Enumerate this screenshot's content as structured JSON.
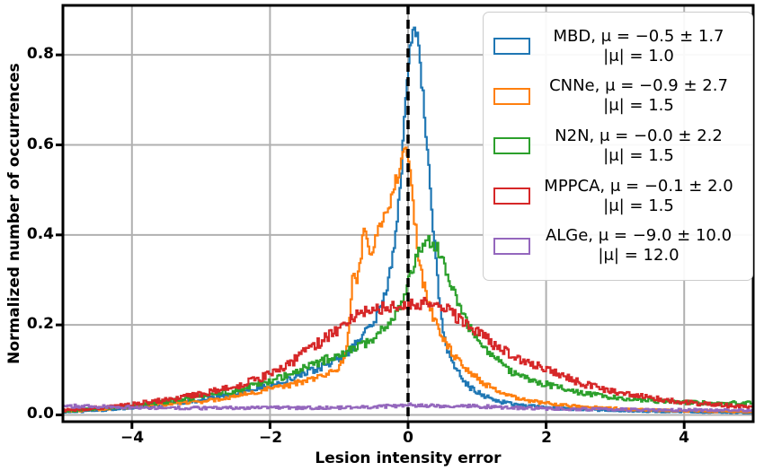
{
  "figure": {
    "xlabel": "Lesion intensity error",
    "ylabel": "Normalized number of occurrences",
    "x_tick_labels": [
      "−4",
      "−2",
      "0",
      "2",
      "4"
    ],
    "y_tick_labels": [
      "0.0",
      "0.2",
      "0.4",
      "0.6",
      "0.8"
    ]
  },
  "colors": {
    "background": "#ffffff",
    "grid": "#b0b0b0",
    "spine": "#000000",
    "zero_line": "#000000",
    "legend_border": "#cccccc"
  },
  "chart_data": {
    "type": "line",
    "title": "",
    "xlabel": "Lesion intensity error",
    "ylabel": "Normalized number of occurrences",
    "xlim": [
      -5,
      5
    ],
    "ylim": [
      -0.015,
      0.91
    ],
    "x_ticks": [
      -4,
      -2,
      0,
      2,
      4
    ],
    "y_ticks": [
      0,
      0.2,
      0.4,
      0.6,
      0.8
    ],
    "grid": true,
    "legend_position": "upper right",
    "vline": {
      "x": 0,
      "style": "dashed",
      "color": "#000000"
    },
    "series": [
      {
        "name": "MBD",
        "color": "#1f77b4",
        "legend_line1": "MBD, μ = −0.5 ± 1.7",
        "legend_line2": "|μ| = 1.0",
        "mu": -0.5,
        "sigma": 1.7,
        "abs_mu": 1.0,
        "peak": {
          "x": 0.1,
          "y": 0.86
        },
        "noise": 0.024,
        "x": [
          -5,
          -4.5,
          -4,
          -3.5,
          -3,
          -2.5,
          -2,
          -1.75,
          -1.5,
          -1.25,
          -1,
          -0.8,
          -0.6,
          -0.5,
          -0.4,
          -0.3,
          -0.2,
          -0.15,
          -0.1,
          -0.05,
          0,
          0.05,
          0.1,
          0.15,
          0.2,
          0.25,
          0.3,
          0.35,
          0.4,
          0.45,
          0.5,
          0.6,
          0.7,
          0.8,
          0.9,
          1,
          1.25,
          1.5,
          2,
          2.5,
          3,
          3.5,
          4,
          4.5,
          5
        ],
        "y": [
          0.006,
          0.01,
          0.016,
          0.024,
          0.033,
          0.048,
          0.065,
          0.078,
          0.092,
          0.107,
          0.125,
          0.15,
          0.19,
          0.21,
          0.24,
          0.29,
          0.38,
          0.46,
          0.56,
          0.7,
          0.8,
          0.855,
          0.86,
          0.81,
          0.72,
          0.62,
          0.53,
          0.43,
          0.33,
          0.25,
          0.175,
          0.125,
          0.1,
          0.075,
          0.06,
          0.05,
          0.032,
          0.024,
          0.016,
          0.012,
          0.01,
          0.008,
          0.007,
          0.006,
          0.005
        ]
      },
      {
        "name": "CNNe",
        "color": "#ff7f0e",
        "legend_line1": "CNNe, μ = −0.9 ± 2.7",
        "legend_line2": "|μ| = 1.5",
        "mu": -0.9,
        "sigma": 2.7,
        "abs_mu": 1.5,
        "peak": {
          "x": -0.05,
          "y": 0.61
        },
        "noise": 0.024,
        "x": [
          -5,
          -4.5,
          -4,
          -3.5,
          -3,
          -2.5,
          -2,
          -1.75,
          -1.5,
          -1.25,
          -1,
          -0.9,
          -0.85,
          -0.8,
          -0.75,
          -0.7,
          -0.65,
          -0.6,
          -0.55,
          -0.5,
          -0.45,
          -0.4,
          -0.35,
          -0.3,
          -0.25,
          -0.2,
          -0.15,
          -0.1,
          -0.05,
          0,
          0.05,
          0.1,
          0.15,
          0.2,
          0.3,
          0.4,
          0.5,
          0.6,
          0.7,
          0.8,
          0.9,
          1,
          1.25,
          1.5,
          1.75,
          2,
          2.5,
          3,
          3.5,
          4,
          4.5,
          5
        ],
        "y": [
          0.008,
          0.012,
          0.018,
          0.024,
          0.03,
          0.042,
          0.058,
          0.066,
          0.075,
          0.085,
          0.105,
          0.14,
          0.22,
          0.33,
          0.3,
          0.33,
          0.42,
          0.4,
          0.36,
          0.38,
          0.4,
          0.42,
          0.44,
          0.46,
          0.48,
          0.51,
          0.54,
          0.57,
          0.61,
          0.58,
          0.48,
          0.42,
          0.35,
          0.3,
          0.24,
          0.2,
          0.17,
          0.145,
          0.125,
          0.11,
          0.095,
          0.08,
          0.055,
          0.04,
          0.032,
          0.026,
          0.018,
          0.014,
          0.011,
          0.009,
          0.008,
          0.007
        ]
      },
      {
        "name": "N2N",
        "color": "#2ca02c",
        "legend_line1": "N2N, μ = −0.0 ± 2.2",
        "legend_line2": "|μ| = 1.5",
        "mu": -0.0,
        "sigma": 2.2,
        "abs_mu": 1.5,
        "peak": {
          "x": 0.3,
          "y": 0.385
        },
        "noise": 0.026,
        "x": [
          -5,
          -4.5,
          -4,
          -3.5,
          -3,
          -2.5,
          -2,
          -1.75,
          -1.5,
          -1.25,
          -1,
          -0.75,
          -0.5,
          -0.25,
          -0.1,
          0,
          0.1,
          0.2,
          0.3,
          0.4,
          0.5,
          0.6,
          0.7,
          0.8,
          0.9,
          1,
          1.25,
          1.5,
          1.75,
          2,
          2.5,
          3,
          3.5,
          4,
          4.5,
          5
        ],
        "y": [
          0.008,
          0.014,
          0.02,
          0.03,
          0.04,
          0.055,
          0.075,
          0.088,
          0.105,
          0.12,
          0.135,
          0.15,
          0.17,
          0.21,
          0.25,
          0.3,
          0.35,
          0.38,
          0.385,
          0.375,
          0.34,
          0.3,
          0.26,
          0.22,
          0.19,
          0.165,
          0.125,
          0.095,
          0.078,
          0.068,
          0.048,
          0.038,
          0.032,
          0.028,
          0.025,
          0.028
        ]
      },
      {
        "name": "MPPCA",
        "color": "#d62728",
        "legend_line1": "MPPCA, μ = −0.1 ± 2.0",
        "legend_line2": "|μ| = 1.5",
        "mu": -0.1,
        "sigma": 2.0,
        "abs_mu": 1.5,
        "peak": {
          "x": 0.2,
          "y": 0.25
        },
        "noise": 0.03,
        "x": [
          -5,
          -4.5,
          -4,
          -3.5,
          -3,
          -2.5,
          -2,
          -1.75,
          -1.5,
          -1.25,
          -1,
          -0.8,
          -0.6,
          -0.4,
          -0.2,
          0,
          0.2,
          0.4,
          0.6,
          0.8,
          1,
          1.25,
          1.5,
          1.75,
          2,
          2.25,
          2.5,
          2.75,
          3,
          3.5,
          4,
          4.5,
          5
        ],
        "y": [
          0.01,
          0.016,
          0.024,
          0.034,
          0.046,
          0.064,
          0.09,
          0.11,
          0.14,
          0.165,
          0.19,
          0.215,
          0.23,
          0.235,
          0.24,
          0.245,
          0.25,
          0.24,
          0.23,
          0.205,
          0.185,
          0.155,
          0.13,
          0.115,
          0.1,
          0.085,
          0.07,
          0.06,
          0.052,
          0.038,
          0.028,
          0.022,
          0.016
        ]
      },
      {
        "name": "ALGe",
        "color": "#9467bd",
        "legend_line1": "ALGe, μ = −9.0 ± 10.0",
        "legend_line2": "|μ| = 12.0",
        "mu": -9.0,
        "sigma": 10.0,
        "abs_mu": 12.0,
        "peak": {
          "x": 0,
          "y": 0.022
        },
        "noise": 0.028,
        "x": [
          -5,
          -4,
          -3,
          -2,
          -1,
          -0.5,
          0,
          0.5,
          1,
          1.5,
          2,
          2.5,
          3,
          3.5,
          4,
          4.5,
          5
        ],
        "y": [
          0.02,
          0.017,
          0.015,
          0.016,
          0.016,
          0.018,
          0.022,
          0.02,
          0.019,
          0.016,
          0.014,
          0.013,
          0.012,
          0.012,
          0.011,
          0.011,
          0.01
        ]
      }
    ]
  }
}
